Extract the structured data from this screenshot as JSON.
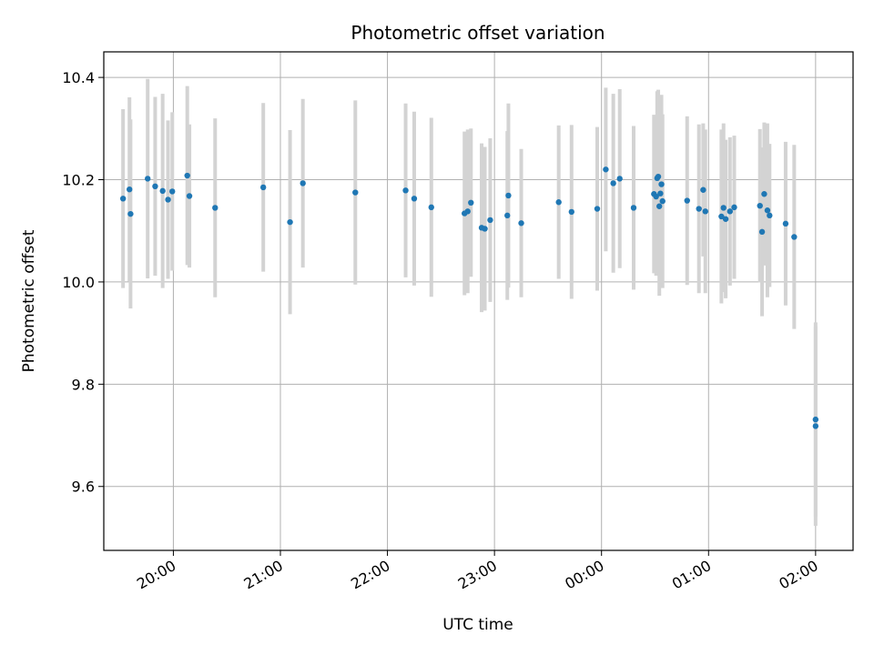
{
  "chart_data": {
    "type": "scatter",
    "title": "Photometric offset variation",
    "xlabel": "UTC time",
    "ylabel": "Photometric offset",
    "x_is_time": true,
    "x_unit": "hours after 19:00 UTC (axis ticks printed as HH:MM)",
    "xlim": [
      0.35,
      7.35
    ],
    "ylim": [
      9.475,
      10.45
    ],
    "x_ticks": [
      1,
      2,
      3,
      4,
      5,
      6,
      7
    ],
    "x_tick_labels": [
      "20:00",
      "21:00",
      "22:00",
      "23:00",
      "00:00",
      "01:00",
      "02:00"
    ],
    "y_ticks": [
      9.6,
      9.8,
      10.0,
      10.2,
      10.4
    ],
    "y_tick_labels": [
      "9.6",
      "9.8",
      "10.0",
      "10.2",
      "10.4"
    ],
    "grid": true,
    "colors": {
      "point": "#1f77b4",
      "errorbar": "#d3d3d3",
      "grid": "#b0b0b0",
      "axes": "#000000"
    },
    "series": [
      {
        "x": [
          0.53,
          0.59,
          0.6,
          0.76,
          0.83,
          0.9,
          0.95,
          0.99,
          1.13,
          1.15,
          1.39,
          1.84,
          2.09,
          2.21,
          2.7,
          3.17,
          3.25,
          3.41,
          3.72,
          3.75,
          3.78,
          3.88,
          3.91,
          3.96,
          4.12,
          4.13,
          4.25,
          4.6,
          4.72,
          4.96,
          5.04,
          5.11,
          5.17,
          5.3,
          5.49,
          5.51,
          5.52,
          5.53,
          5.54,
          5.55,
          5.56,
          5.57,
          5.8,
          5.91,
          5.95,
          5.97,
          6.12,
          6.14,
          6.16,
          6.2,
          6.24,
          6.48,
          6.5,
          6.52,
          6.55,
          6.57,
          6.72,
          6.8,
          7.0,
          7.0
        ],
        "y": [
          10.163,
          10.181,
          10.133,
          10.202,
          10.187,
          10.178,
          10.161,
          10.177,
          10.208,
          10.168,
          10.145,
          10.185,
          10.117,
          10.193,
          10.175,
          10.179,
          10.163,
          10.146,
          10.134,
          10.138,
          10.155,
          10.106,
          10.104,
          10.121,
          10.13,
          10.169,
          10.115,
          10.156,
          10.137,
          10.143,
          10.22,
          10.193,
          10.202,
          10.145,
          10.172,
          10.167,
          10.203,
          10.206,
          10.148,
          10.173,
          10.191,
          10.158,
          10.159,
          10.143,
          10.18,
          10.138,
          10.128,
          10.145,
          10.123,
          10.138,
          10.146,
          10.149,
          10.098,
          10.172,
          10.14,
          10.13,
          10.114,
          10.088,
          9.731,
          9.718
        ],
        "err": [
          0.175,
          0.18,
          0.185,
          0.195,
          0.175,
          0.19,
          0.155,
          0.155,
          0.175,
          0.14,
          0.175,
          0.165,
          0.18,
          0.165,
          0.18,
          0.17,
          0.17,
          0.175,
          0.16,
          0.16,
          0.145,
          0.165,
          0.16,
          0.16,
          0.165,
          0.18,
          0.145,
          0.15,
          0.17,
          0.16,
          0.16,
          0.175,
          0.175,
          0.16,
          0.155,
          0.155,
          0.17,
          0.17,
          0.175,
          0.17,
          0.175,
          0.17,
          0.165,
          0.165,
          0.13,
          0.16,
          0.17,
          0.165,
          0.155,
          0.145,
          0.14,
          0.15,
          0.165,
          0.14,
          0.17,
          0.14,
          0.16,
          0.18,
          0.19,
          0.195
        ]
      }
    ]
  }
}
